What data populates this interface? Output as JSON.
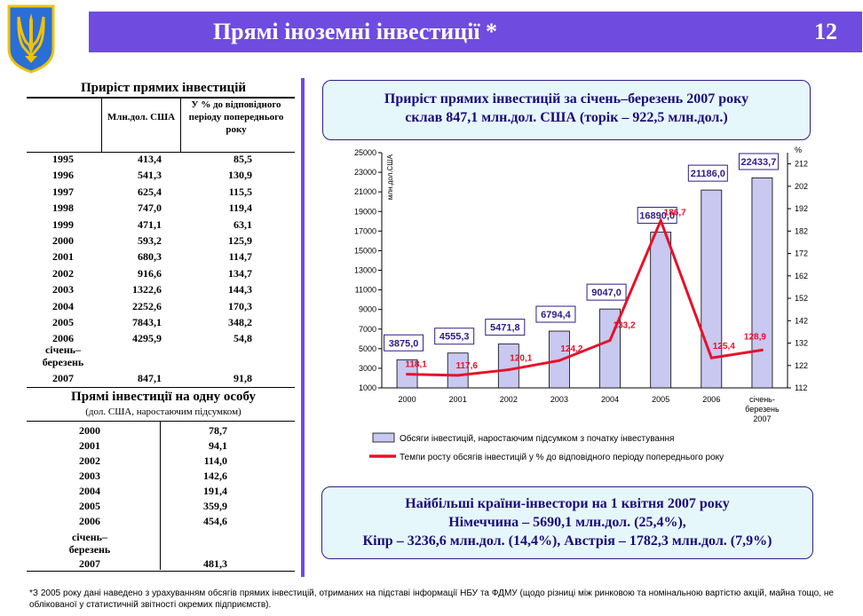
{
  "header": {
    "title": "Прямі іноземні інвестиції *",
    "page_number": "12"
  },
  "table1": {
    "title": "Приріст прямих інвестицій",
    "col_value": "Млн.дол. США",
    "col_percent": "У % до відповідного періоду попереднього року",
    "rows": [
      {
        "year": "1995",
        "value": "413,4",
        "percent": "85,5"
      },
      {
        "year": "1996",
        "value": "541,3",
        "percent": "130,9"
      },
      {
        "year": "1997",
        "value": "625,4",
        "percent": "115,5"
      },
      {
        "year": "1998",
        "value": "747,0",
        "percent": "119,4"
      },
      {
        "year": "1999",
        "value": "471,1",
        "percent": "63,1"
      },
      {
        "year": "2000",
        "value": "593,2",
        "percent": "125,9"
      },
      {
        "year": "2001",
        "value": "680,3",
        "percent": "114,7"
      },
      {
        "year": "2002",
        "value": "916,6",
        "percent": "134,7"
      },
      {
        "year": "2003",
        "value": "1322,6",
        "percent": "144,3"
      },
      {
        "year": "2004",
        "value": "2252,6",
        "percent": "170,3"
      },
      {
        "year": "2005",
        "value": "7843,1",
        "percent": "348,2"
      },
      {
        "year": "2006",
        "value": "4295,9",
        "percent": "54,8"
      }
    ],
    "period_label": "січень–березень",
    "period_rows": [
      {
        "year": "2007",
        "value": "847,1",
        "percent": "91,8"
      }
    ]
  },
  "table2": {
    "title": "Прямі інвестиції на одну особу",
    "subtitle": "(дол. США, наростаючим підсумком)",
    "rows": [
      {
        "year": "2000",
        "value": "78,7"
      },
      {
        "year": "2001",
        "value": "94,1"
      },
      {
        "year": "2002",
        "value": "114,0"
      },
      {
        "year": "2003",
        "value": "142,6"
      },
      {
        "year": "2004",
        "value": "191,4"
      },
      {
        "year": "2005",
        "value": "359,9"
      },
      {
        "year": "2006",
        "value": "454,6"
      }
    ],
    "period_label": "січень–березень",
    "period_rows": [
      {
        "year": "2007",
        "value": "481,3"
      }
    ]
  },
  "top_box": {
    "line1": "Приріст прямих інвестицій за січень–березень 2007 року",
    "line2": "склав 847,1 млн.дол. США (торік – 922,5 млн.дол.)"
  },
  "bottom_box": {
    "line1": "Найбільші країни-інвестори на 1 квітня 2007 року",
    "line2": "Німеччина – 5690,1 млн.дол. (25,4%),",
    "line3": "Кіпр – 3236,6 млн.дол. (14,4%), Австрія – 1782,3 млн.дол. (7,9%)"
  },
  "footnote": "*З 2005 року дані наведено з урахуванням обсягів прямих інвестицій, отриманих на підставі інформації НБУ та ФДМУ (щодо різниці між ринковою та номінальною вартістю акцій, майна тощо, не облікованої у статистичній звітності окремих підприємств).",
  "chart_data": {
    "type": "bar",
    "categories": [
      "2000",
      "2001",
      "2002",
      "2003",
      "2004",
      "2005",
      "2006",
      "січень-березень 2007"
    ],
    "category_lines": [
      [
        "2000"
      ],
      [
        "2001"
      ],
      [
        "2002"
      ],
      [
        "2003"
      ],
      [
        "2004"
      ],
      [
        "2005"
      ],
      [
        "2006"
      ],
      [
        "січень-",
        "березень",
        "2007"
      ]
    ],
    "series": [
      {
        "name": "Обсяги інвестицій, наростаючим підсумком з початку інвестування",
        "type": "bar",
        "axis": "left",
        "values": [
          3875.0,
          4555.3,
          5471.8,
          6794.4,
          9047.0,
          16890.0,
          21186.0,
          22433.7
        ],
        "labels": [
          "3875,0",
          "4555,3",
          "5471,8",
          "6794,4",
          "9047,0",
          "16890,0",
          "21186,0",
          "22433,7"
        ],
        "color": "#c8c8f0"
      },
      {
        "name": "Темпи росту обсягів інвестицій у % до відповідного періоду попереднього року",
        "type": "line",
        "axis": "right",
        "values": [
          118.1,
          117.6,
          120.1,
          124.2,
          133.2,
          186.7,
          125.4,
          128.9
        ],
        "labels": [
          "118,1",
          "117,6",
          "120,1",
          "124,2",
          "133,2",
          "186,7",
          "125,4",
          "128,9"
        ],
        "color": "#e8102a"
      }
    ],
    "ylabel": "млн.дол.США",
    "y2label": "%",
    "ylim": [
      1000,
      25000
    ],
    "y_ticks": [
      1000,
      3000,
      5000,
      7000,
      9000,
      11000,
      13000,
      15000,
      17000,
      19000,
      21000,
      23000,
      25000
    ],
    "y2lim": [
      112,
      217
    ],
    "y2_ticks": [
      112,
      122,
      132,
      142,
      152,
      162,
      172,
      182,
      192,
      202,
      212
    ],
    "legend": "bottom"
  }
}
